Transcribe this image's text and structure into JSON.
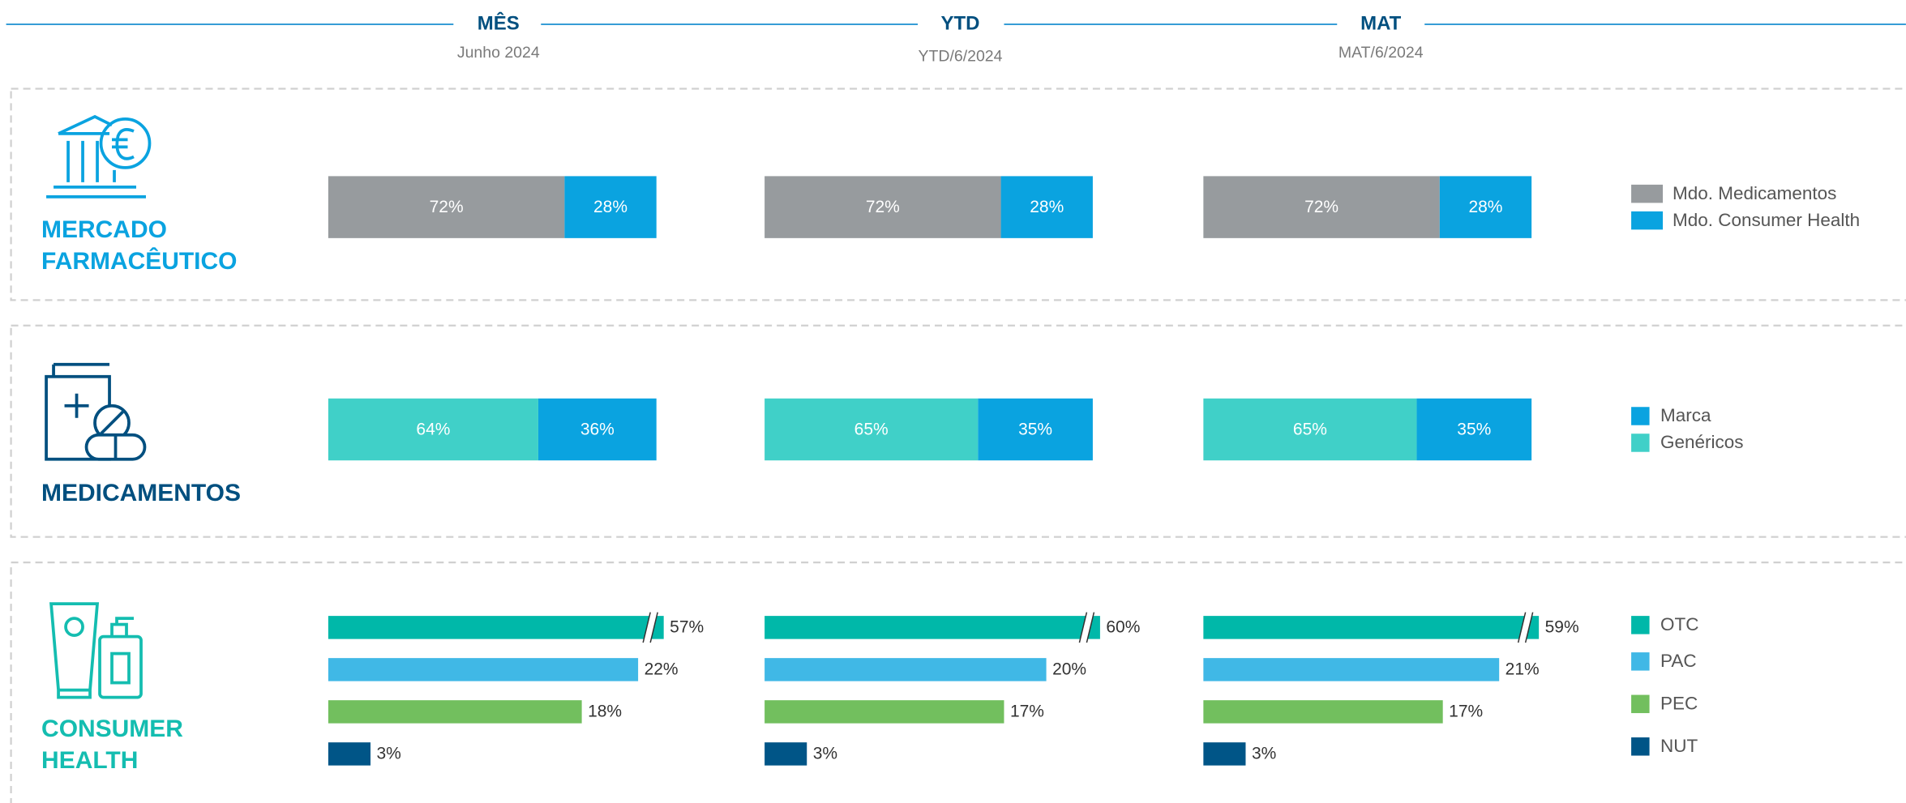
{
  "periods": [
    {
      "title": "MÊS",
      "subtitle": "Junho 2024"
    },
    {
      "title": "YTD",
      "subtitle": "YTD/6/2024"
    },
    {
      "title": "MAT",
      "subtitle": "MAT/6/2024"
    }
  ],
  "sections": [
    {
      "type": "stacked_bar",
      "title": [
        "MERCADO",
        "FARMACÊUTICO"
      ],
      "title_color": "#0aa3e0",
      "stack_from": "left",
      "xlim": [
        0,
        100
      ],
      "series": [
        {
          "name": "Mdo. Medicamentos",
          "color": "#979b9e",
          "values": [
            72,
            72,
            72
          ],
          "value_labels": [
            "72%",
            "72%",
            "72%"
          ]
        },
        {
          "name": "Mdo. Consumer Health",
          "color": "#0aa3e0",
          "values": [
            28,
            28,
            28
          ],
          "value_labels": [
            "28%",
            "28%",
            "28%"
          ]
        }
      ]
    },
    {
      "type": "stacked_bar",
      "title": [
        "MEDICAMENTOS"
      ],
      "title_color": "#004f7f",
      "stack_from": "right",
      "xlim": [
        0,
        100
      ],
      "series": [
        {
          "name": "Marca",
          "color": "#0aa3e0",
          "values": [
            36,
            35,
            35
          ],
          "value_labels": [
            "36%",
            "35%",
            "35%"
          ]
        },
        {
          "name": "Genéricos",
          "color": "#40d0c8",
          "values": [
            64,
            65,
            65
          ],
          "value_labels": [
            "64%",
            "65%",
            "65%"
          ]
        }
      ]
    },
    {
      "type": "bar",
      "title": [
        "CONSUMER",
        "HEALTH"
      ],
      "title_color": "#14bdb0",
      "xlim": [
        0,
        23.3
      ],
      "series": [
        {
          "name": "OTC",
          "color": "#00b8a9",
          "values": [
            57,
            60,
            59
          ],
          "value_labels": [
            "57%",
            "60%",
            "59%"
          ],
          "broken": true
        },
        {
          "name": "PAC",
          "color": "#40b8e6",
          "values": [
            22,
            20,
            21
          ],
          "value_labels": [
            "22%",
            "20%",
            "21%"
          ]
        },
        {
          "name": "PEC",
          "color": "#72bf5e",
          "values": [
            18,
            17,
            17
          ],
          "value_labels": [
            "18%",
            "17%",
            "17%"
          ]
        },
        {
          "name": "NUT",
          "color": "#005587",
          "values": [
            3,
            3,
            3
          ],
          "value_labels": [
            "3%",
            "3%",
            "3%"
          ]
        }
      ]
    }
  ]
}
